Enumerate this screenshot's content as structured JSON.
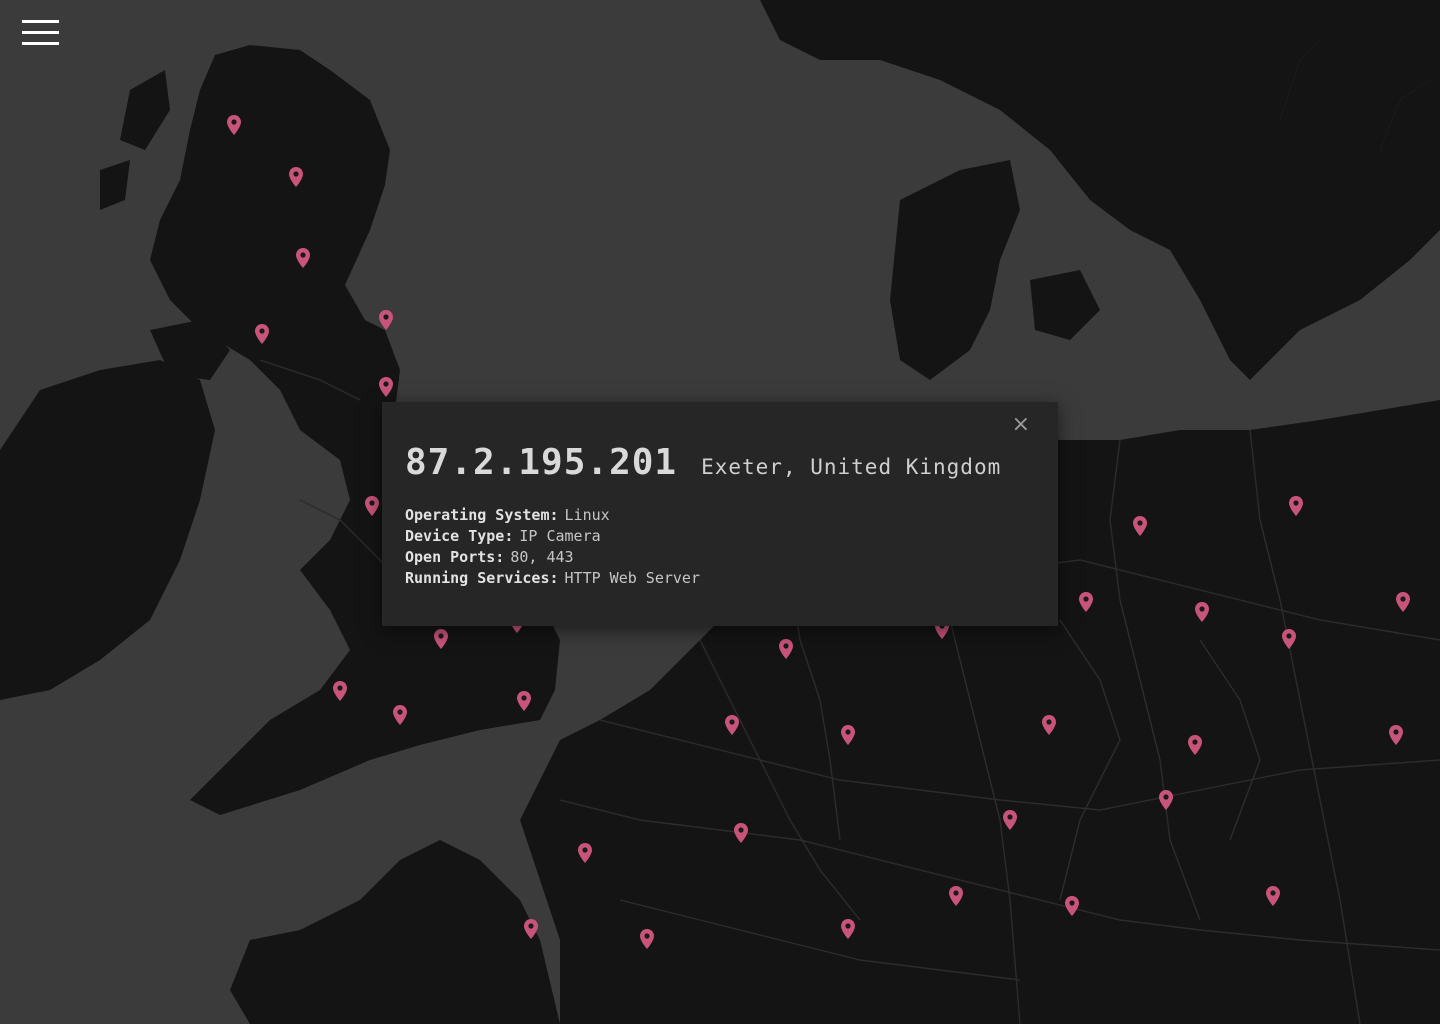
{
  "menu": {
    "icon": "hamburger-menu-icon"
  },
  "marker_color": "#c9547a",
  "popup": {
    "close_label": "×",
    "ip": "87.2.195.201",
    "location": "Exeter, United Kingdom",
    "fields": [
      {
        "key": "Operating System:",
        "value": "Linux"
      },
      {
        "key": "Device Type:",
        "value": "IP Camera"
      },
      {
        "key": "Open Ports:",
        "value": "80, 443"
      },
      {
        "key": "Running Services:",
        "value": "HTTP Web Server"
      }
    ]
  }
}
